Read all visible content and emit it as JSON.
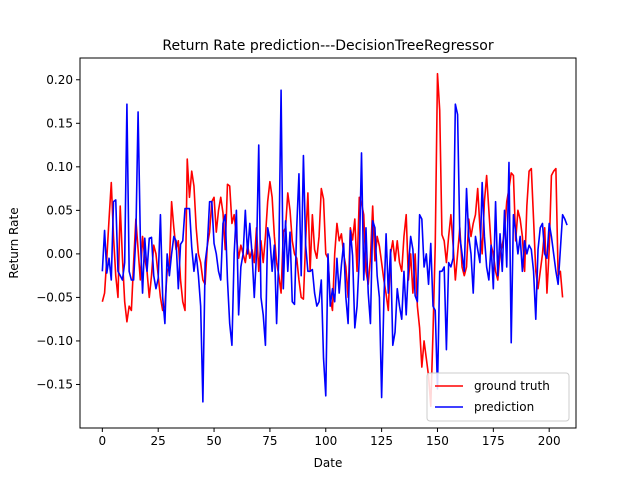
{
  "chart_data": {
    "type": "line",
    "title": "Return Rate prediction---DecisionTreeRegressor",
    "xlabel": "Date",
    "ylabel": "Return Rate",
    "xlim": [
      -10,
      212
    ],
    "ylim": [
      -0.2,
      0.225
    ],
    "xticks": [
      0,
      25,
      50,
      75,
      100,
      125,
      150,
      175,
      200
    ],
    "xtick_labels": [
      "0",
      "25",
      "50",
      "75",
      "100",
      "125",
      "150",
      "175",
      "200"
    ],
    "yticks": [
      -0.15,
      -0.1,
      -0.05,
      0.0,
      0.05,
      0.1,
      0.15,
      0.2
    ],
    "ytick_labels": [
      "−0.15",
      "−0.10",
      "−0.05",
      "0.00",
      "0.05",
      "0.10",
      "0.15",
      "0.20"
    ],
    "grid": false,
    "legend_position": "lower-right",
    "series": [
      {
        "name": "ground truth",
        "color": "#ff0000",
        "values": [
          -0.055,
          -0.045,
          -0.005,
          0.04,
          0.082,
          0.02,
          -0.025,
          -0.05,
          0.055,
          -0.005,
          -0.055,
          -0.078,
          -0.06,
          -0.065,
          -0.01,
          0.04,
          0.005,
          -0.03,
          0.02,
          -0.005,
          -0.02,
          -0.05,
          -0.025,
          0.01,
          0.0,
          -0.025,
          -0.05,
          -0.065,
          -0.06,
          -0.02,
          -0.015,
          0.06,
          0.03,
          0.005,
          0.015,
          -0.03,
          -0.055,
          -0.065,
          0.109,
          0.065,
          0.095,
          0.078,
          0.03,
          0.0,
          -0.01,
          -0.03,
          -0.035,
          0.01,
          0.025,
          0.06,
          0.065,
          0.025,
          0.05,
          0.065,
          0.047,
          0.005,
          0.08,
          0.078,
          0.035,
          0.045,
          0.02,
          -0.005,
          0.01,
          0.0,
          -0.01,
          0.01,
          -0.005,
          0.005,
          -0.01,
          0.03,
          -0.02,
          0.015,
          -0.01,
          0.02,
          0.06,
          0.083,
          0.065,
          0.02,
          -0.01,
          -0.025,
          -0.045,
          0.025,
          0.03,
          0.07,
          0.05,
          0.015,
          0.0,
          -0.005,
          -0.03,
          -0.05,
          -0.052,
          0.015,
          0.07,
          -0.02,
          0.045,
          0.005,
          -0.005,
          0.02,
          0.075,
          0.063,
          0.0,
          -0.005,
          -0.05,
          -0.065,
          0.0,
          0.035,
          0.015,
          0.023,
          0.0,
          -0.015,
          -0.05,
          0.03,
          0.016,
          0.04,
          -0.02,
          0.065,
          0.058,
          0.045,
          -0.02,
          -0.035,
          -0.005,
          0.055,
          -0.008,
          0.02,
          0.009,
          -0.01,
          -0.03,
          -0.046,
          -0.065,
          0.0,
          0.015,
          -0.008,
          0.015,
          -0.01,
          -0.02,
          0.02,
          0.045,
          -0.03,
          0.0,
          -0.045,
          0.0,
          -0.06,
          -0.085,
          -0.13,
          -0.1,
          -0.12,
          -0.14,
          -0.175,
          -0.09,
          0.01,
          0.207,
          0.165,
          0.022,
          0.015,
          -0.01,
          0.02,
          0.045,
          0.01,
          -0.03,
          0.0,
          0.03,
          -0.015,
          -0.025,
          -0.015,
          0.04,
          0.02,
          0.035,
          0.045,
          0.075,
          0.03,
          0.0,
          0.06,
          0.09,
          0.05,
          0.01,
          0.0,
          -0.02,
          -0.03,
          0.0,
          0.01,
          0.025,
          0.06,
          0.075,
          0.093,
          0.09,
          0.015,
          0.05,
          0.04,
          0.02,
          -0.02,
          0.055,
          0.095,
          0.098,
          0.04,
          -0.02,
          -0.04,
          -0.02,
          0.0,
          0.03,
          -0.045,
          0.005,
          0.09,
          0.095,
          0.098,
          -0.025,
          -0.02,
          -0.05
        ]
      },
      {
        "name": "prediction",
        "color": "#0000ff",
        "values": [
          -0.02,
          0.027,
          -0.022,
          -0.005,
          -0.03,
          0.06,
          0.062,
          -0.02,
          -0.025,
          -0.03,
          -0.01,
          0.172,
          -0.02,
          -0.03,
          -0.03,
          0.02,
          0.163,
          0.02,
          -0.045,
          0.018,
          -0.02,
          0.018,
          0.019,
          -0.025,
          -0.04,
          -0.028,
          0.045,
          -0.05,
          -0.08,
          0.0,
          -0.025,
          0.0,
          0.02,
          0.015,
          -0.04,
          0.011,
          0.015,
          0.052,
          0.052,
          0.052,
          0.008,
          -0.02,
          0.0,
          -0.025,
          -0.06,
          -0.17,
          -0.01,
          0.01,
          0.06,
          0.06,
          0.012,
          0.0,
          -0.02,
          -0.03,
          0.035,
          0.045,
          -0.03,
          -0.08,
          -0.105,
          0.0,
          0.05,
          -0.07,
          -0.015,
          0.0,
          0.05,
          0.0,
          0.035,
          0.0,
          -0.05,
          0.0,
          0.125,
          -0.05,
          -0.07,
          -0.105,
          0.03,
          0.017,
          -0.02,
          0.01,
          -0.08,
          0.0,
          0.188,
          -0.04,
          0.038,
          -0.02,
          0.025,
          -0.055,
          -0.058,
          0.03,
          0.092,
          -0.025,
          0.113,
          0.01,
          -0.02,
          -0.02,
          -0.018,
          -0.045,
          -0.06,
          -0.055,
          -0.03,
          -0.12,
          -0.163,
          0.0,
          -0.06,
          -0.04,
          -0.055,
          -0.005,
          -0.045,
          -0.013,
          0.012,
          -0.05,
          -0.08,
          0.027,
          -0.002,
          -0.085,
          -0.06,
          -0.005,
          0.116,
          -0.03,
          0.03,
          -0.045,
          -0.08,
          0.038,
          0.03,
          -0.025,
          -0.05,
          -0.165,
          -0.055,
          0.023,
          -0.045,
          0.005,
          -0.105,
          -0.09,
          -0.04,
          -0.06,
          -0.075,
          -0.02,
          -0.07,
          -0.015,
          0.02,
          0.005,
          -0.048,
          -0.055,
          0.045,
          0.04,
          -0.015,
          0.0,
          -0.035,
          0.012,
          -0.06,
          -0.065,
          -0.155,
          -0.02,
          -0.02,
          -0.015,
          -0.11,
          -0.01,
          -0.015,
          -0.005,
          0.172,
          0.16,
          0.02,
          0.0,
          -0.02,
          0.075,
          0.02,
          0.0,
          -0.045,
          0.02,
          0.005,
          -0.01,
          0.082,
          0.02,
          -0.015,
          -0.03,
          0.01,
          -0.04,
          0.06,
          -0.025,
          0.023,
          -0.02,
          0.05,
          -0.015,
          0.105,
          -0.102,
          0.045,
          0.025,
          0.0,
          0.02,
          -0.02,
          0.015,
          0.0,
          0.01,
          0.005,
          -0.02,
          -0.075,
          0.005,
          0.03,
          0.035,
          0.0,
          -0.005,
          0.035,
          0.02,
          0.0,
          -0.02,
          -0.035,
          0.005,
          0.045,
          0.04,
          0.033
        ]
      }
    ]
  }
}
